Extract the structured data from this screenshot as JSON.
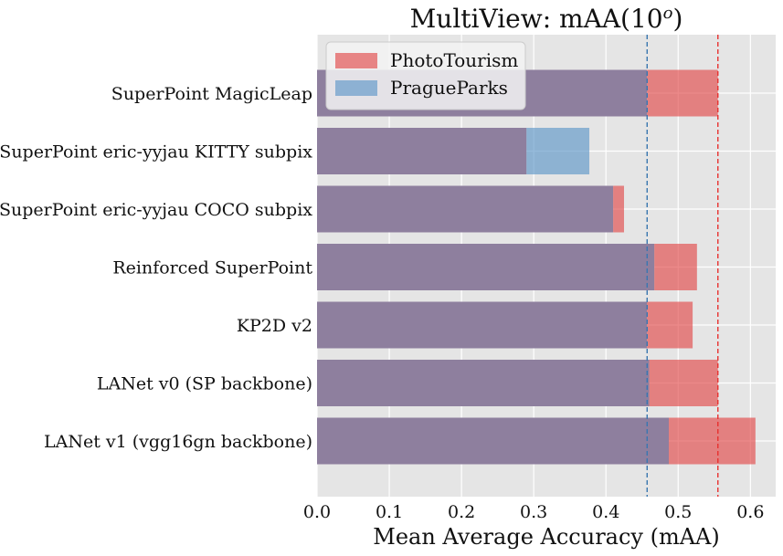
{
  "chart_data": {
    "type": "bar",
    "orientation": "horizontal",
    "overlay": true,
    "title": "MultiView: mAA(10",
    "title_sup": "o",
    "title_end": ")",
    "xlabel": "Mean Average Accuracy (mAA)",
    "ylabel": "",
    "xlim": [
      0.0,
      0.635
    ],
    "xticks": [
      "0.0",
      "0.1",
      "0.2",
      "0.3",
      "0.4",
      "0.5",
      "0.6"
    ],
    "grid": true,
    "legend_position": "top-left",
    "categories": [
      "SuperPoint MagicLeap",
      "SuperPoint eric-yyjau KITTY subpix",
      "SuperPoint eric-yyjau COCO subpix",
      "Reinforced SuperPoint",
      "KP2D v2",
      "LANet v0 (SP backbone)",
      "LANet v1 (vgg16gn backbone)"
    ],
    "series": [
      {
        "name": "PhotoTourism",
        "color": "#e24a4a",
        "values": [
          0.555,
          0.29,
          0.425,
          0.526,
          0.52,
          0.555,
          0.607
        ],
        "mean": 0.555
      },
      {
        "name": "PragueParks",
        "color": "#5e97c8",
        "values": [
          0.457,
          0.377,
          0.41,
          0.467,
          0.457,
          0.46,
          0.487
        ],
        "mean": 0.457
      }
    ],
    "overlap_color": "#8e7f9e",
    "mean_lines": [
      {
        "series": "PhotoTourism",
        "color": "#e8302e"
      },
      {
        "series": "PragueParks",
        "color": "#3a76b0"
      }
    ]
  }
}
